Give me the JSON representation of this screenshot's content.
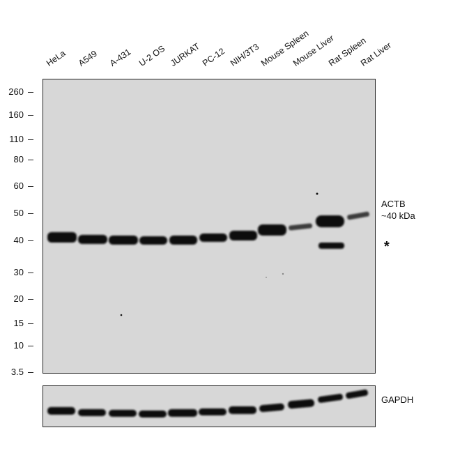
{
  "lanes": [
    "HeLa",
    "A549",
    "A-431",
    "U-2 OS",
    "JURKAT",
    "PC-12",
    "NIH/3T3",
    "Mouse Spleen",
    "Mouse Liver",
    "Rat Spleen",
    "Rat Liver"
  ],
  "mw_markers": [
    "260",
    "160",
    "110",
    "80",
    "60",
    "50",
    "40",
    "30",
    "20",
    "15",
    "10",
    "3.5"
  ],
  "target": {
    "name": "ACTB",
    "size": "~40 kDa",
    "nonspecific_mark": "*"
  },
  "loading_control": "GAPDH"
}
